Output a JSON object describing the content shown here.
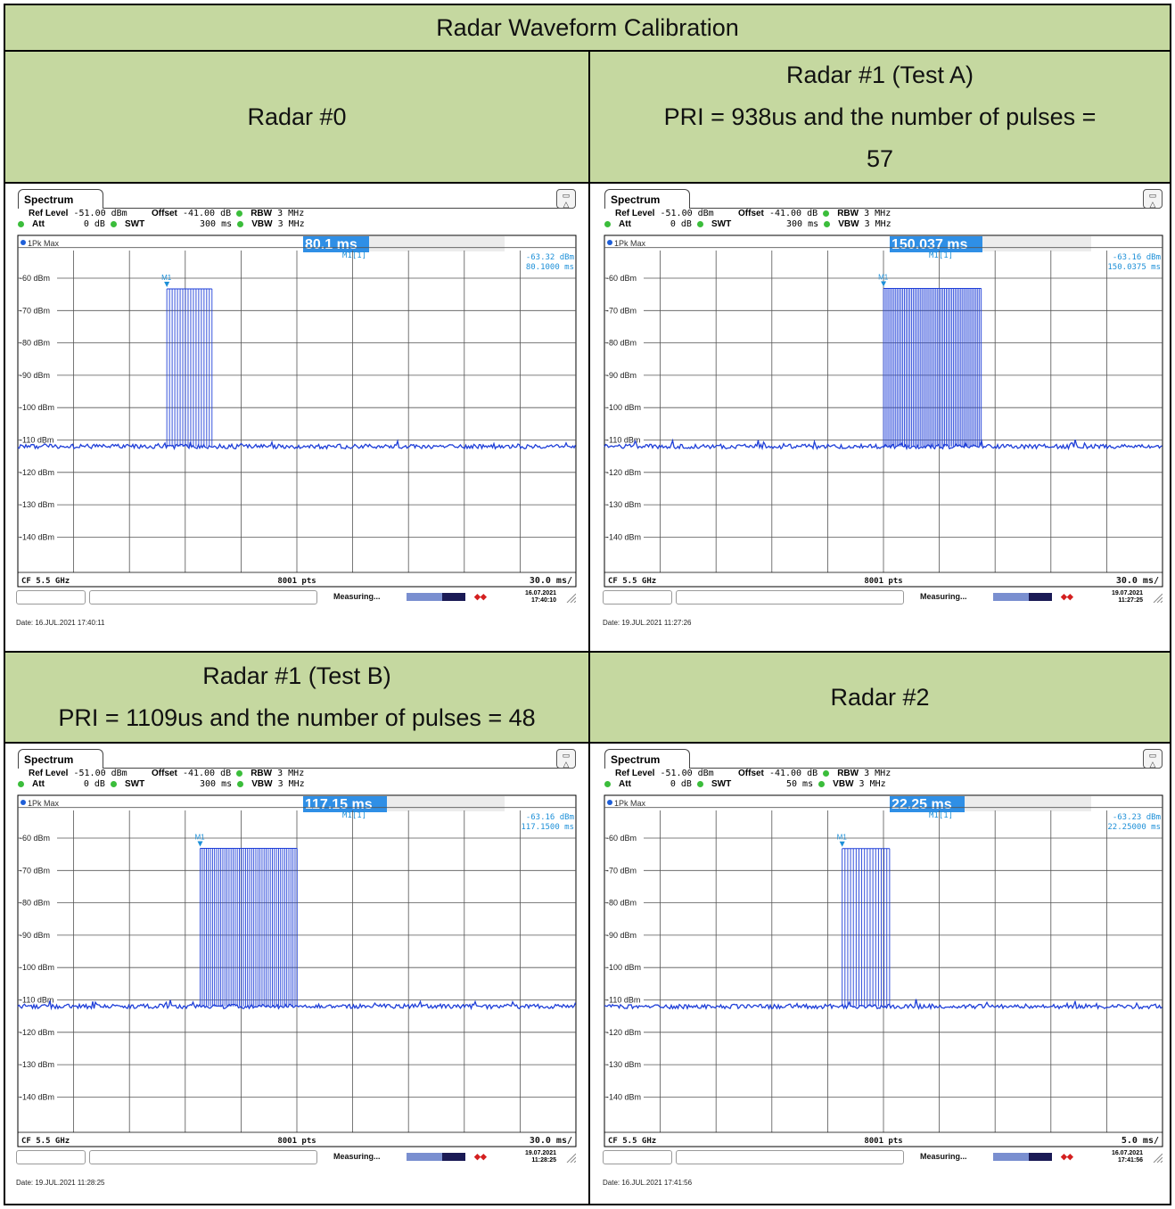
{
  "title": "Radar Waveform Calibration",
  "headers": {
    "radar0": [
      "Radar #0"
    ],
    "radar1a": [
      "Radar #1 (Test A)",
      "PRI = 938us and the number of pulses =",
      "57"
    ],
    "radar1b": [
      "Radar #1 (Test B)",
      "PRI = 1109us and the number of pulses = 48"
    ],
    "radar2": [
      "Radar #2"
    ]
  },
  "colors": {
    "header_bg": "#c5d8a0",
    "trace": "#1f3fd8",
    "marker": "#1e90d8",
    "marker_box": "#2f8fe6"
  },
  "common": {
    "tab": "Spectrum",
    "ref_level_label": "Ref Level",
    "ref_level": "-51.00 dBm",
    "offset_label": "Offset",
    "offset": "-41.00 dB",
    "rbw_label": "RBW",
    "rbw": "3 MHz",
    "att_label": "Att",
    "att": "0 dB",
    "swt_label": "SWT",
    "vbw_label": "VBW",
    "vbw": "3 MHz",
    "trace_label": "1Pk Max",
    "marker_name": "M1[1]",
    "marker_tag": "M1",
    "cf": "CF 5.5 GHz",
    "pts": "8001 pts",
    "status": "Measuring...",
    "y_ticks": [
      "-60 dBm",
      "-70 dBm",
      "-80 dBm",
      "-90 dBm",
      "-100 dBm",
      "-110 dBm",
      "-120 dBm",
      "-130 dBm",
      "-140 dBm"
    ],
    "icon": "display-config-icon"
  },
  "panels": [
    {
      "id": "radar0",
      "swt": "300 ms",
      "marker_big": "80.1 ms",
      "marker_level": "-63.32 dBm",
      "marker_time": "80.1000 ms",
      "per_div": "30.0 ms/",
      "ts_date": "16.07.2021",
      "ts_time": "17:40:10",
      "date_footer": "Date: 16.JUL.2021  17:40:11"
    },
    {
      "id": "radar1a",
      "swt": "300 ms",
      "marker_big": "150.037 ms",
      "marker_level": "-63.16 dBm",
      "marker_time": "150.0375 ms",
      "per_div": "30.0 ms/",
      "ts_date": "19.07.2021",
      "ts_time": "11:27:25",
      "date_footer": "Date: 19.JUL.2021  11:27:26"
    },
    {
      "id": "radar1b",
      "swt": "300 ms",
      "marker_big": "117.15 ms",
      "marker_level": "-63.16 dBm",
      "marker_time": "117.1500 ms",
      "per_div": "30.0 ms/",
      "ts_date": "19.07.2021",
      "ts_time": "11:28:25",
      "date_footer": "Date: 19.JUL.2021  11:28:25"
    },
    {
      "id": "radar2",
      "swt": "50 ms",
      "marker_big": "22.25 ms",
      "marker_level": "-63.23 dBm",
      "marker_time": "22.25000 ms",
      "per_div": "5.0 ms/",
      "ts_date": "16.07.2021",
      "ts_time": "17:41:56",
      "date_footer": "Date: 16.JUL.2021  17:41:56"
    }
  ],
  "chart_data": [
    {
      "type": "line",
      "title": "",
      "xlabel": "",
      "ylabel": "",
      "x_unit": "ms",
      "ylim": [
        -150,
        -50
      ],
      "xlim": [
        0,
        300
      ],
      "series": [
        {
          "pulse_start_ms": 80.1,
          "pulse_count": 18,
          "pulse_period_ms": 1.428,
          "pulse_level_dBm": -63.32,
          "noise_floor_dBm": -112
        }
      ]
    },
    {
      "type": "line",
      "title": "",
      "xlabel": "",
      "ylabel": "",
      "x_unit": "ms",
      "ylim": [
        -150,
        -50
      ],
      "xlim": [
        0,
        300
      ],
      "series": [
        {
          "pulse_start_ms": 150.037,
          "pulse_count": 57,
          "pulse_period_ms": 0.938,
          "pulse_level_dBm": -63.16,
          "noise_floor_dBm": -112
        }
      ]
    },
    {
      "type": "line",
      "title": "",
      "xlabel": "",
      "ylabel": "",
      "x_unit": "ms",
      "ylim": [
        -150,
        -50
      ],
      "xlim": [
        0,
        300
      ],
      "series": [
        {
          "pulse_start_ms": 98,
          "pulse_count": 48,
          "pulse_period_ms": 1.109,
          "pulse_level_dBm": -63.16,
          "noise_floor_dBm": -112
        }
      ]
    },
    {
      "type": "line",
      "title": "",
      "xlabel": "",
      "ylabel": "",
      "x_unit": "ms",
      "ylim": [
        -150,
        -50
      ],
      "xlim": [
        0,
        50
      ],
      "series": [
        {
          "pulse_start_ms": 21.3,
          "pulse_count": 18,
          "pulse_period_ms": 0.25,
          "pulse_level_dBm": -63.23,
          "noise_floor_dBm": -112
        }
      ]
    }
  ]
}
